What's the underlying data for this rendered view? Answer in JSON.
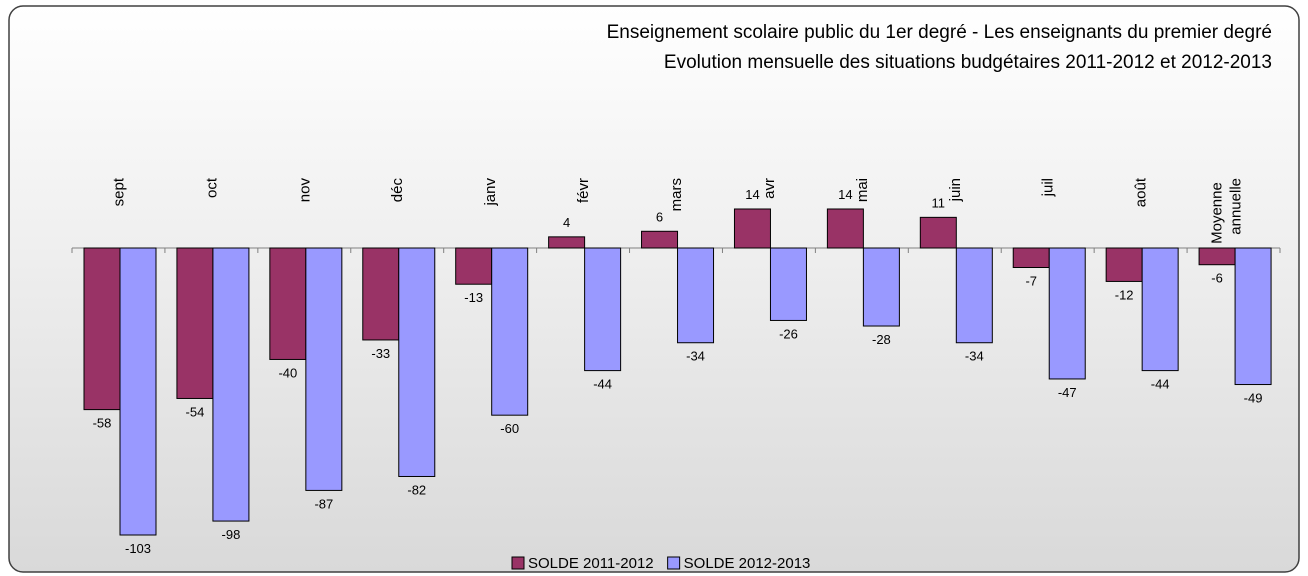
{
  "chart_data": {
    "type": "bar",
    "title": [
      "Enseignement scolaire public du 1er degré - Les enseignants du premier degré",
      "Evolution mensuelle des situations budgétaires 2011-2012 et 2012-2013"
    ],
    "categories": [
      "sept",
      "oct",
      "nov",
      "déc",
      "janv",
      "févr",
      "mars",
      "avr",
      "mai",
      "juin",
      "juil",
      "août",
      "Moyenne annuelle"
    ],
    "series": [
      {
        "name": "SOLDE 2011-2012",
        "color": "#993366",
        "values": [
          -58,
          -54,
          -40,
          -33,
          -13,
          4,
          6,
          14,
          14,
          11,
          -7,
          -12,
          -6
        ]
      },
      {
        "name": "SOLDE 2012-2013",
        "color": "#9999ff",
        "values": [
          -103,
          -98,
          -87,
          -82,
          -60,
          -44,
          -34,
          -26,
          -28,
          -34,
          -47,
          -44,
          -49
        ]
      }
    ],
    "legend": "bottom"
  }
}
